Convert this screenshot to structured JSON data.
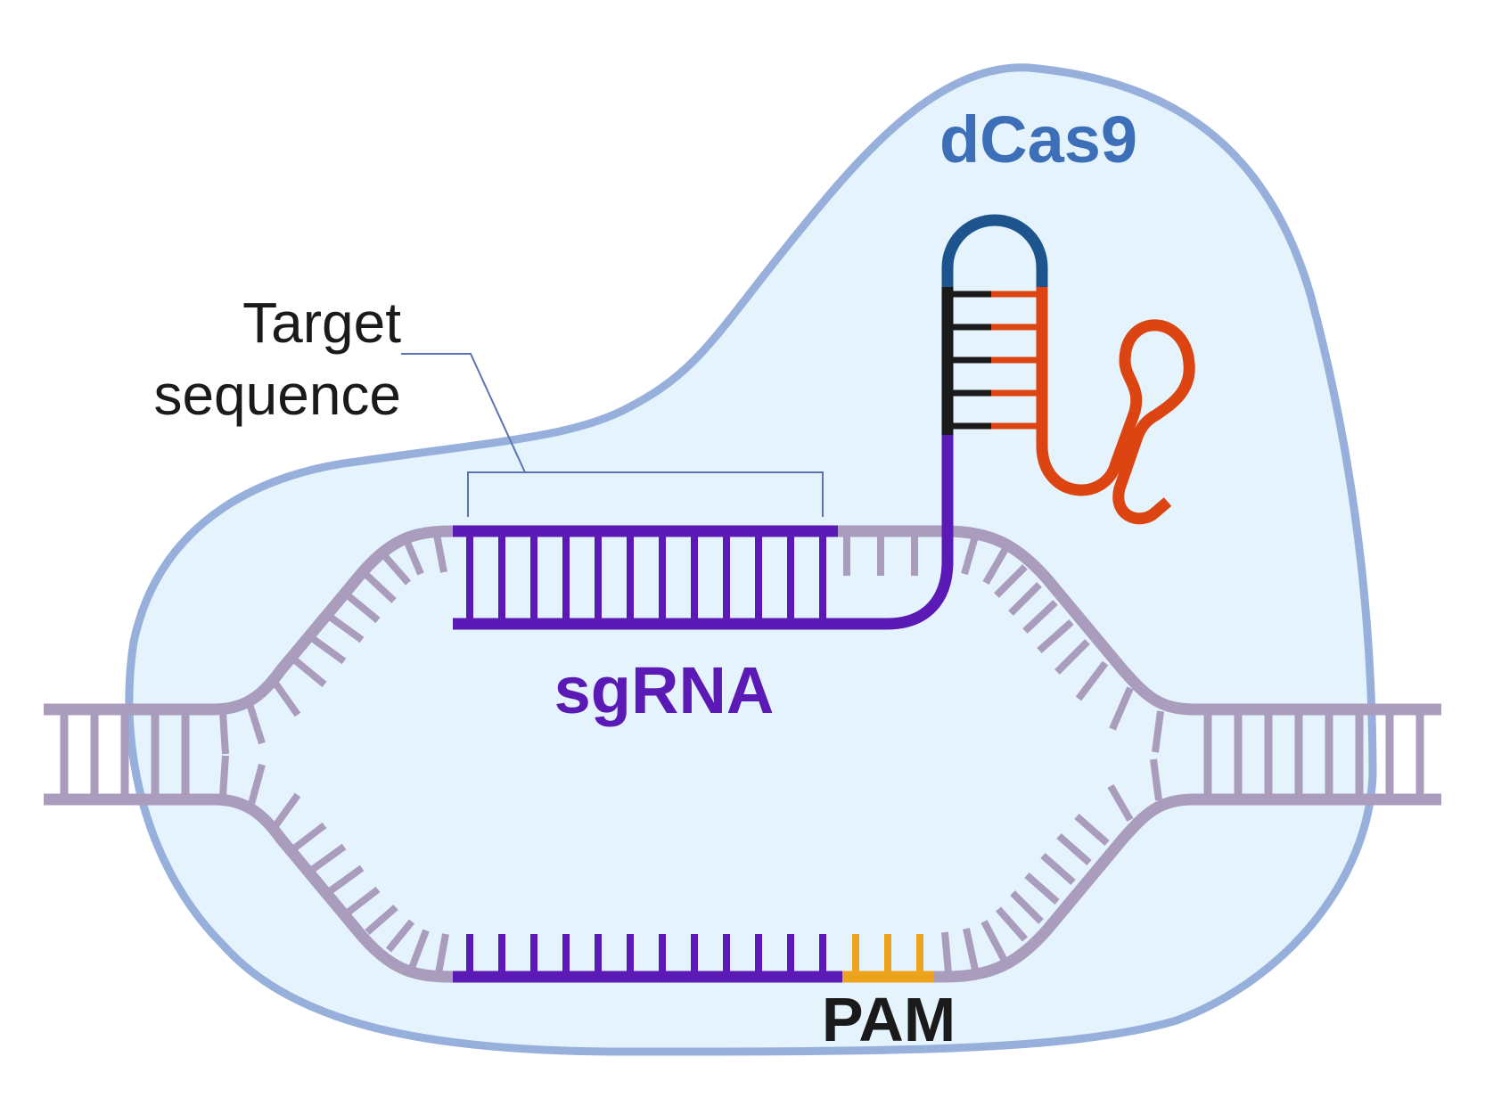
{
  "labels": {
    "protein": "dCas9",
    "target_line1": "Target",
    "target_line2": "sequence",
    "guide": "sgRNA",
    "pam": "PAM"
  },
  "colors": {
    "protein_fill": "#e5f3fc",
    "protein_outline": "#97afdb",
    "protein_text": "#3d6eb8",
    "dna": "#aa9cbd",
    "guide": "#5b1ab5",
    "pam": "#eea31d",
    "hairpin_dark": "#1a1a1a",
    "hairpin_orange": "#dc4512",
    "hairpin_blue": "#1d548e",
    "callout_line": "#5c73b3",
    "text_dark": "#1a1a1a"
  }
}
